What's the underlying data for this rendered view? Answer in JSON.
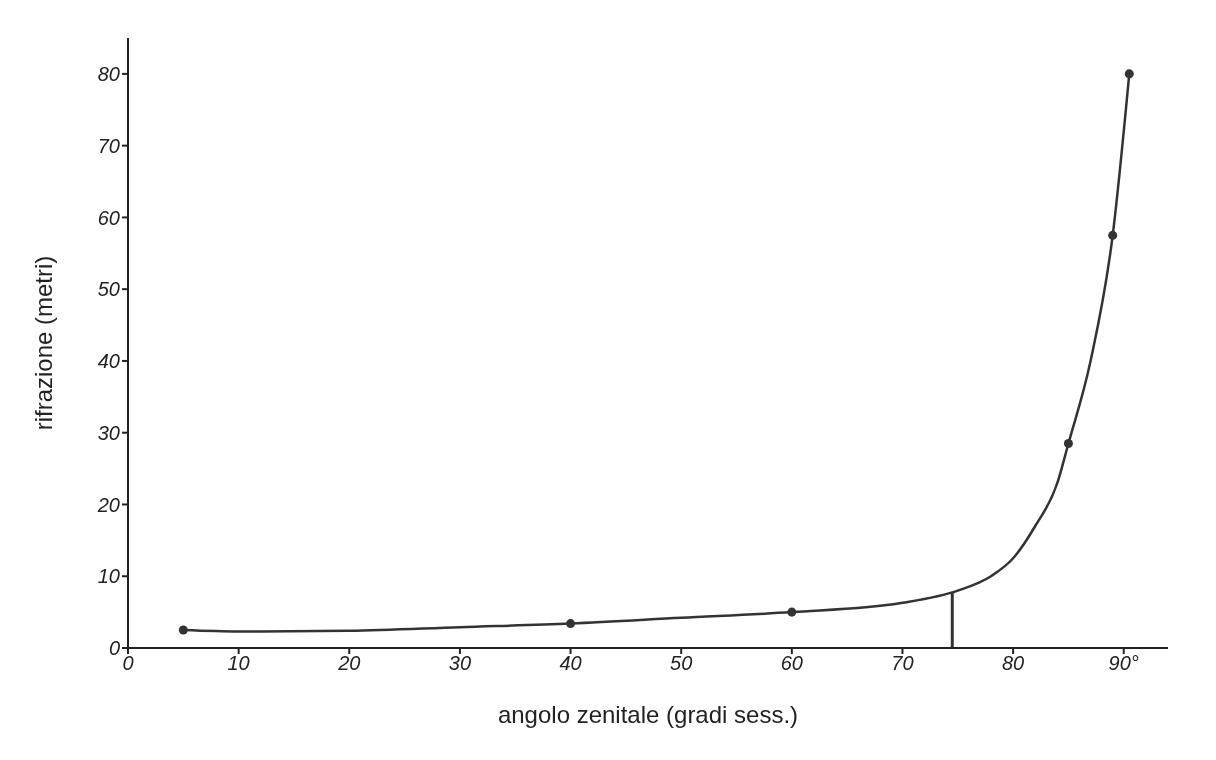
{
  "chart_data": {
    "type": "line",
    "xlabel": "angolo zenitale (gradi sess.)",
    "ylabel": "rifrazione (metri)",
    "xlim": [
      0,
      94
    ],
    "ylim": [
      0,
      85
    ],
    "xticks": [
      0,
      10,
      20,
      30,
      40,
      50,
      60,
      70,
      80,
      {
        "value": 90,
        "label": "90°"
      }
    ],
    "yticks": [
      0,
      10,
      20,
      30,
      40,
      50,
      60,
      70,
      80
    ],
    "line_style": "solid",
    "series": [
      {
        "color": "#333333",
        "marker": "none",
        "x": [
          5,
          10,
          20,
          30,
          40,
          50,
          60,
          70,
          75,
          78,
          80,
          82,
          84,
          85,
          87,
          89,
          90.5
        ],
        "values": [
          2.5,
          2.3,
          2.4,
          2.9,
          3.4,
          4.2,
          5,
          6.3,
          8,
          10,
          12.5,
          17,
          23,
          28.5,
          40,
          57.5,
          80
        ]
      },
      {
        "type": "scatter",
        "color": "#333333",
        "marker": "circle",
        "x": [
          5,
          40,
          60,
          85,
          89,
          90.5
        ],
        "values": [
          2.5,
          3.4,
          5,
          28.5,
          57.5,
          80
        ]
      }
    ],
    "ref_lines": [
      {
        "axis": "x",
        "value": 74.5,
        "color": "#333333"
      }
    ]
  }
}
